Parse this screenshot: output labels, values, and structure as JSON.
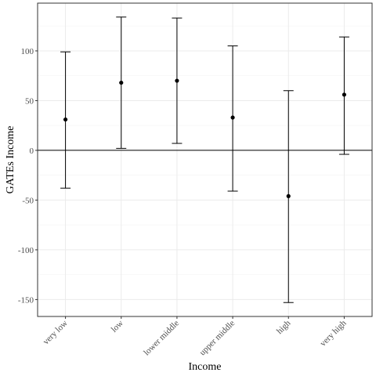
{
  "chart_data": {
    "type": "errorbar",
    "xlabel": "Income",
    "ylabel": "GATEs Income",
    "categories": [
      "very low",
      "low",
      "lower middle",
      "upper middle",
      "high",
      "very high"
    ],
    "estimates": [
      31,
      68,
      70,
      33,
      -46,
      56
    ],
    "lower": [
      -38,
      2,
      7,
      -41,
      -153,
      -4
    ],
    "upper": [
      99,
      134,
      133,
      105,
      60,
      114
    ],
    "ylim": [
      -167,
      148
    ],
    "yticks": [
      -150,
      -100,
      -50,
      0,
      50,
      100
    ],
    "reference_line": 0,
    "grid": true,
    "colors": {
      "point": "#000000",
      "errorbar": "#000000",
      "grid_major": "#ebebeb",
      "grid_minor": "#f5f5f5",
      "panel_border": "#333333"
    }
  }
}
